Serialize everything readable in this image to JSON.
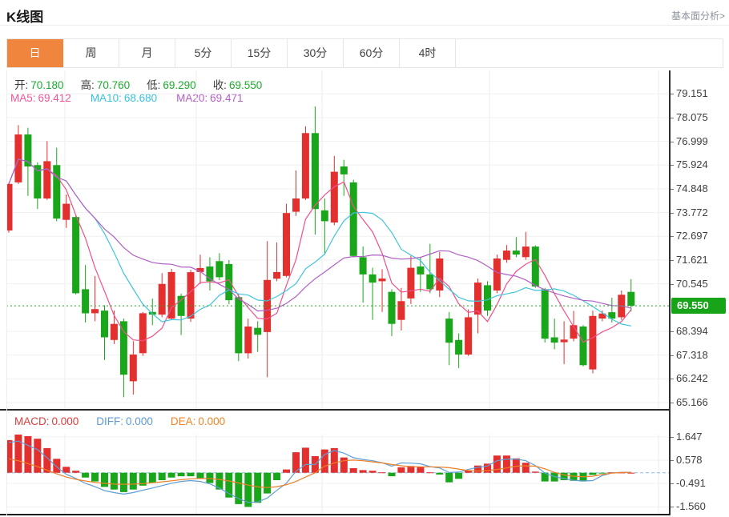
{
  "header": {
    "title": "K线图",
    "link_label": "基本面分析>"
  },
  "tab_bar": {
    "tabs": [
      "日",
      "周",
      "月",
      "5分",
      "15分",
      "30分",
      "60分",
      "4时"
    ],
    "selected": "日",
    "selected_color": "#f0863d"
  },
  "legend": {
    "ohlc": [
      {
        "label": "开:",
        "value": "70.180"
      },
      {
        "label": "高:",
        "value": "70.760"
      },
      {
        "label": "低:",
        "value": "69.290"
      },
      {
        "label": "收:",
        "value": "69.550"
      }
    ],
    "ohlc_label_color": "#3c3c3c",
    "ohlc_value_color": "#1cab2e",
    "ma": [
      {
        "label": "MA5:",
        "value": "69.412",
        "color": "#f2549a"
      },
      {
        "label": "MA10:",
        "value": "68.680",
        "color": "#35c3dd"
      },
      {
        "label": "MA20:",
        "value": "69.471",
        "color": "#b55ec9"
      }
    ]
  },
  "macd_legend": [
    {
      "label": "MACD:",
      "value": "0.000",
      "color": "#e23b3b"
    },
    {
      "label": "DIFF:",
      "value": "0.000",
      "color": "#5b9bd5"
    },
    {
      "label": "DEA:",
      "value": "0.000",
      "color": "#f08426"
    }
  ],
  "chart_data": {
    "type": "candlestick",
    "title": "K线图 (daily K-line with MA5/MA10/MA20 and MACD panel)",
    "up_color": "#e42f2f",
    "down_color": "#1aa61a",
    "price_axis_labels": [
      79.151,
      78.075,
      76.999,
      75.924,
      74.848,
      73.772,
      72.697,
      71.621,
      70.545,
      68.394,
      67.318,
      66.242,
      65.166
    ],
    "price_axis_range": [
      64.84,
      80.21
    ],
    "current_price": 69.55,
    "current_price_color": "#22a822",
    "badge_color": "#18a418",
    "ma_periods": [
      5,
      10,
      20
    ],
    "ma_colors": [
      "#f0508c",
      "#40c4dc",
      "#b060c4"
    ],
    "candles_ohlc": [
      [
        72.96,
        75.13,
        72.86,
        75.07
      ],
      [
        75.14,
        77.73,
        75.07,
        77.31
      ],
      [
        77.31,
        77.61,
        74.53,
        75.86
      ],
      [
        75.92,
        76.04,
        73.93,
        74.41
      ],
      [
        74.41,
        77.01,
        74.35,
        76.1
      ],
      [
        75.92,
        76.71,
        73.38,
        73.5
      ],
      [
        73.44,
        74.59,
        73.08,
        74.17
      ],
      [
        73.57,
        73.62,
        70.06,
        70.12
      ],
      [
        70.3,
        71.39,
        68.79,
        69.21
      ],
      [
        69.21,
        70.9,
        68.85,
        69.4
      ],
      [
        69.33,
        69.57,
        67.1,
        68.12
      ],
      [
        68.0,
        69.33,
        67.82,
        68.73
      ],
      [
        68.85,
        68.97,
        65.41,
        66.43
      ],
      [
        66.13,
        67.95,
        65.53,
        67.34
      ],
      [
        67.4,
        69.27,
        67.28,
        69.21
      ],
      [
        69.27,
        69.88,
        68.67,
        69.15
      ],
      [
        69.15,
        71.03,
        69.03,
        70.54
      ],
      [
        68.97,
        71.22,
        68.9,
        71.08
      ],
      [
        70.0,
        70.1,
        68.23,
        69.09
      ],
      [
        68.97,
        71.18,
        68.82,
        71.07
      ],
      [
        71.08,
        71.86,
        70.54,
        71.26
      ],
      [
        71.33,
        71.75,
        70.24,
        70.66
      ],
      [
        71.57,
        71.93,
        70.71,
        70.84
      ],
      [
        71.44,
        71.62,
        69.62,
        69.8
      ],
      [
        69.94,
        70.06,
        67.04,
        67.4
      ],
      [
        67.4,
        68.97,
        67.16,
        68.61
      ],
      [
        68.55,
        68.85,
        67.46,
        68.24
      ],
      [
        68.36,
        72.48,
        66.31,
        70.72
      ],
      [
        70.78,
        72.42,
        70.66,
        71.08
      ],
      [
        70.9,
        74.17,
        70.84,
        73.75
      ],
      [
        73.81,
        75.68,
        73.62,
        74.41
      ],
      [
        74.41,
        77.68,
        74.34,
        77.37
      ],
      [
        77.37,
        78.58,
        72.78,
        73.93
      ],
      [
        73.87,
        74.41,
        71.87,
        73.38
      ],
      [
        73.32,
        76.34,
        73.2,
        75.62
      ],
      [
        75.86,
        76.16,
        74.53,
        75.5
      ],
      [
        75.14,
        75.26,
        71.74,
        71.81
      ],
      [
        71.75,
        72.23,
        69.69,
        70.97
      ],
      [
        70.97,
        71.27,
        68.91,
        70.6
      ],
      [
        70.66,
        71.21,
        69.27,
        70.78
      ],
      [
        70.18,
        70.3,
        68.18,
        68.73
      ],
      [
        68.91,
        70.36,
        68.43,
        69.76
      ],
      [
        69.88,
        71.81,
        69.63,
        71.27
      ],
      [
        71.33,
        71.75,
        70.18,
        70.97
      ],
      [
        70.97,
        72.36,
        70.12,
        70.3
      ],
      [
        70.24,
        71.99,
        69.94,
        71.69
      ],
      [
        68.97,
        69.27,
        66.86,
        67.88
      ],
      [
        68.0,
        68.3,
        66.73,
        67.34
      ],
      [
        67.34,
        69.39,
        67.28,
        69.03
      ],
      [
        69.15,
        70.78,
        68.3,
        70.6
      ],
      [
        70.48,
        70.66,
        69.09,
        69.33
      ],
      [
        70.24,
        71.87,
        70.12,
        71.69
      ],
      [
        71.63,
        72.3,
        71.5,
        72.05
      ],
      [
        72.05,
        72.66,
        71.75,
        71.87
      ],
      [
        71.75,
        72.9,
        71.63,
        72.23
      ],
      [
        72.23,
        72.29,
        70.36,
        70.42
      ],
      [
        70.3,
        70.36,
        67.88,
        68.06
      ],
      [
        68.12,
        68.97,
        67.58,
        67.88
      ],
      [
        67.9,
        68.85,
        66.91,
        68.02
      ],
      [
        68.06,
        69.32,
        67.94,
        68.67
      ],
      [
        68.61,
        68.67,
        66.8,
        66.86
      ],
      [
        66.67,
        69.33,
        66.49,
        69.09
      ],
      [
        68.97,
        69.33,
        68.85,
        69.2
      ],
      [
        69.26,
        69.92,
        68.79,
        68.97
      ],
      [
        69.03,
        70.24,
        68.91,
        70.05
      ],
      [
        70.18,
        70.76,
        69.29,
        69.55
      ]
    ],
    "macd": {
      "axis_labels": [
        1.647,
        0.578,
        -0.491,
        -1.56
      ],
      "axis_range": [
        -1.958,
        1.752
      ],
      "diff_color": "#5f9ed6",
      "dea_color": "#ef7e24",
      "zero_line_color": "#88bbe8",
      "hist": [
        1.5,
        1.8,
        1.68,
        1.56,
        1.13,
        0.64,
        0.27,
        0.09,
        -0.22,
        -0.4,
        -0.65,
        -0.77,
        -0.89,
        -0.77,
        -0.59,
        -0.47,
        -0.34,
        -0.22,
        -0.16,
        -0.16,
        -0.28,
        -0.47,
        -0.77,
        -1.14,
        -1.44,
        -1.57,
        -1.38,
        -0.95,
        -0.34,
        0.15,
        0.94,
        1.15,
        0.76,
        1.07,
        1.13,
        0.7,
        0.21,
        0.12,
        0.09,
        0.02,
        -0.16,
        0.25,
        0.31,
        0.28,
        0.02,
        -0.08,
        -0.44,
        -0.28,
        0.1,
        0.33,
        0.42,
        0.79,
        0.79,
        0.66,
        0.46,
        0.05,
        -0.4,
        -0.4,
        -0.34,
        -0.37,
        -0.4,
        -0.1,
        -0.03,
        0.02,
        0.01,
        0.0
      ],
      "diff": [
        1.39,
        1.45,
        1.26,
        1.06,
        0.69,
        0.27,
        -0.07,
        -0.26,
        -0.49,
        -0.64,
        -0.82,
        -0.91,
        -0.98,
        -0.91,
        -0.8,
        -0.7,
        -0.59,
        -0.48,
        -0.4,
        -0.36,
        -0.4,
        -0.51,
        -0.7,
        -0.95,
        -1.19,
        -1.36,
        -1.34,
        -1.16,
        -0.81,
        -0.48,
        0.07,
        0.38,
        0.38,
        0.84,
        1.02,
        0.9,
        0.69,
        0.61,
        0.55,
        0.46,
        0.3,
        0.45,
        0.44,
        0.41,
        0.28,
        0.22,
        0.01,
        0.03,
        0.15,
        0.25,
        0.31,
        0.55,
        0.62,
        0.63,
        0.55,
        0.33,
        -0.02,
        -0.18,
        -0.27,
        -0.35,
        -0.38,
        -0.36,
        -0.13,
        -0.01,
        0.02,
        0.02
      ],
      "dea": [
        0.64,
        0.55,
        0.42,
        0.28,
        0.12,
        -0.05,
        -0.2,
        -0.3,
        -0.38,
        -0.44,
        -0.49,
        -0.52,
        -0.53,
        -0.52,
        -0.5,
        -0.46,
        -0.42,
        -0.37,
        -0.32,
        -0.28,
        -0.26,
        -0.27,
        -0.31,
        -0.38,
        -0.47,
        -0.57,
        -0.65,
        -0.68,
        -0.64,
        -0.55,
        -0.4,
        -0.2,
        0.0,
        0.3,
        0.45,
        0.55,
        0.58,
        0.55,
        0.5,
        0.45,
        0.38,
        0.32,
        0.28,
        0.27,
        0.27,
        0.26,
        0.23,
        0.17,
        0.1,
        0.08,
        0.1,
        0.15,
        0.22,
        0.3,
        0.32,
        0.3,
        0.18,
        0.02,
        -0.1,
        -0.16,
        -0.18,
        -0.16,
        -0.08,
        -0.02,
        0.01,
        0.02
      ]
    }
  }
}
